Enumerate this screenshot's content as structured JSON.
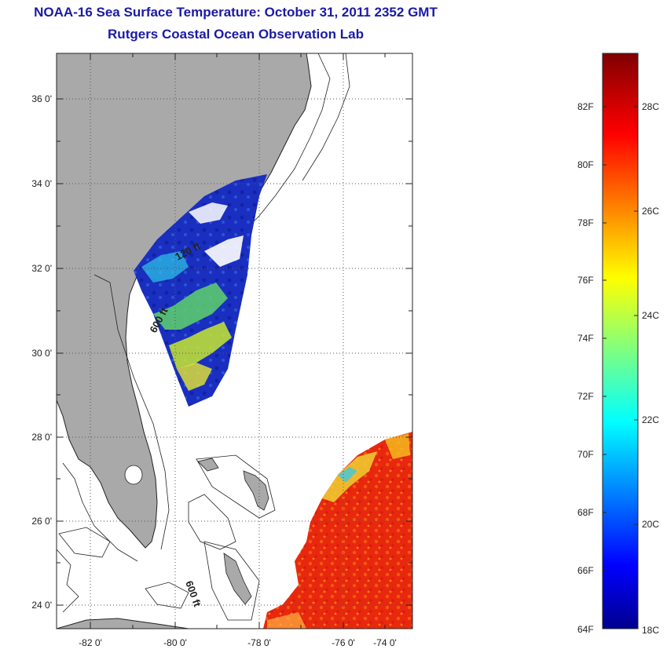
{
  "header": {
    "title": "NOAA-16 Sea Surface Temperature:  October 31, 2011 2352 GMT",
    "subtitle": "Rutgers Coastal Ocean Observation Lab"
  },
  "map": {
    "lat_labels": [
      "36 0'",
      "34 0'",
      "32 0'",
      "30 0'",
      "28 0'",
      "26 0'",
      "24 0'"
    ],
    "lon_labels": [
      "-82 0'",
      "-80 0'",
      "-78 0'",
      "-76 0'",
      "-74 0'"
    ],
    "contour_labels": [
      "120 ft",
      "600 ft",
      "600 ft"
    ],
    "colors": {
      "land": "#a9a9a9",
      "ocean_nodata": "#ffffff",
      "cold_water": "#1a2fc0",
      "warm_water": "#e8280e",
      "grid": "#555555"
    }
  },
  "colorbar": {
    "fahrenheit_labels": [
      "82F",
      "80F",
      "78F",
      "76F",
      "74F",
      "72F",
      "70F",
      "68F",
      "66F",
      "64F"
    ],
    "celsius_labels": [
      "28C",
      "26C",
      "24C",
      "22C",
      "20C",
      "18C"
    ],
    "min_f": 64,
    "max_f": 84,
    "colormap": "jet"
  }
}
